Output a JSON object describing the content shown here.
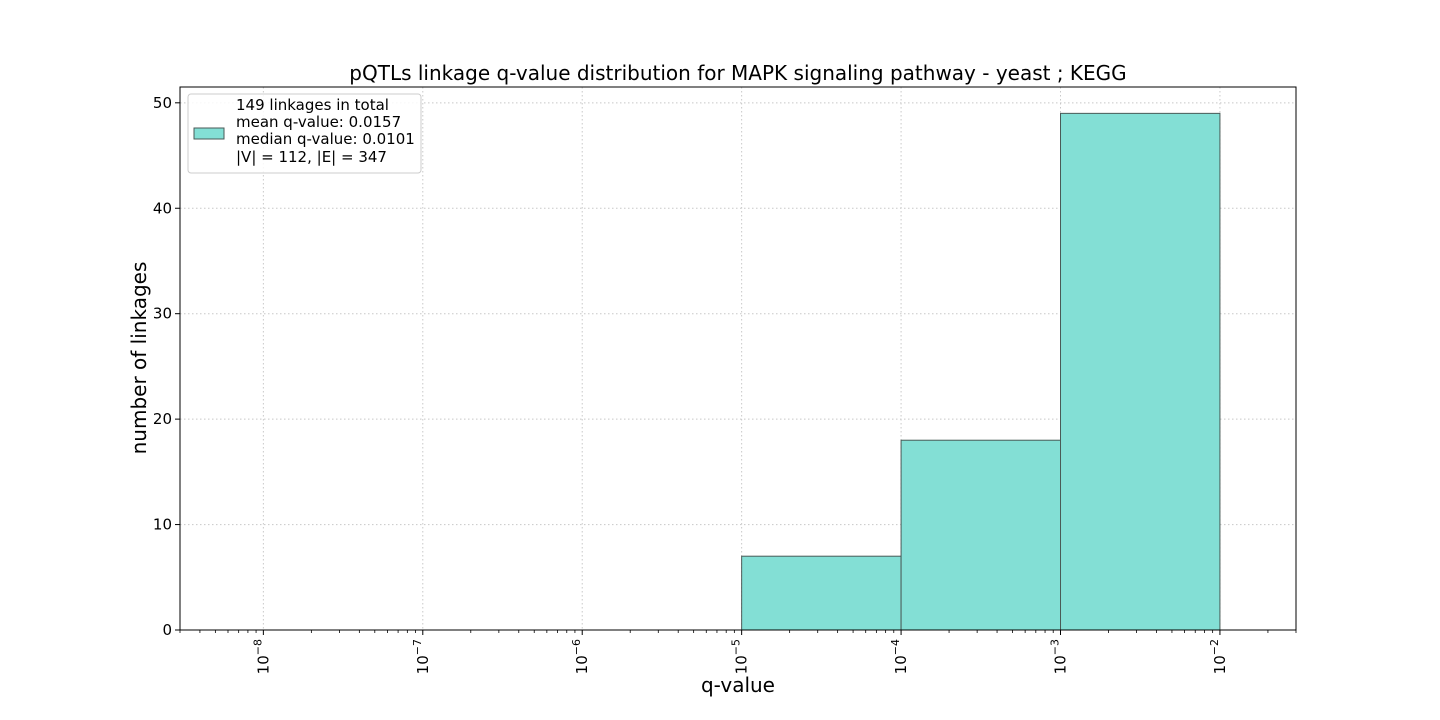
{
  "chart_data": {
    "type": "bar",
    "title": "pQTLs linkage q-value distribution for MAPK signaling pathway - yeast ; KEGG",
    "xlabel": "q-value",
    "ylabel": "number of linkages",
    "x_scale": "log",
    "xlim": [
      3e-09,
      0.03
    ],
    "ylim": [
      0,
      51.5
    ],
    "grid": true,
    "x_ticks": [
      {
        "value": 1e-08,
        "base": "10",
        "exp": "−8"
      },
      {
        "value": 1e-07,
        "base": "10",
        "exp": "−7"
      },
      {
        "value": 1e-06,
        "base": "10",
        "exp": "−6"
      },
      {
        "value": 1e-05,
        "base": "10",
        "exp": "−5"
      },
      {
        "value": 0.0001,
        "base": "10",
        "exp": "−4"
      },
      {
        "value": 0.001,
        "base": "10",
        "exp": "−3"
      },
      {
        "value": 0.01,
        "base": "10",
        "exp": "−2"
      }
    ],
    "y_ticks": [
      0,
      10,
      20,
      30,
      40,
      50
    ],
    "bins": [
      {
        "x_start": 1e-05,
        "x_end": 0.0001,
        "count": 7
      },
      {
        "x_start": 0.0001,
        "x_end": 0.001,
        "count": 18
      },
      {
        "x_start": 0.001,
        "x_end": 0.01,
        "count": 49
      }
    ],
    "bar_color": "#83dfd5",
    "edge_color": "#4a5a57",
    "legend": {
      "placement": "top-left",
      "lines": [
        "149 linkages in total",
        "mean q-value: 0.0157",
        "median q-value: 0.0101",
        "|V| = 112, |E| = 347"
      ]
    }
  }
}
